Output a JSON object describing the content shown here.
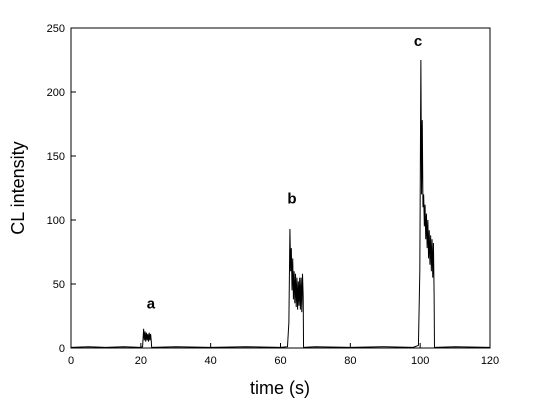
{
  "chart_data": {
    "type": "line",
    "x_label": "time (s)",
    "y_label": "CL intensity",
    "xlim": [
      0,
      120
    ],
    "xticks": [
      0,
      20,
      40,
      60,
      80,
      100,
      120
    ],
    "ylim": [
      0,
      250
    ],
    "yticks": [
      0,
      50,
      100,
      150,
      200,
      250
    ],
    "annotations": [
      {
        "text": "a",
        "x": 22.9,
        "y": 31
      },
      {
        "text": "b",
        "x": 63.3,
        "y": 113
      },
      {
        "text": "c",
        "x": 99.4,
        "y": 236
      }
    ],
    "series": [
      {
        "color": "#000000",
        "x": [
          0,
          5,
          10,
          15,
          20,
          20.5,
          20.8,
          21,
          21.2,
          21.4,
          21.6,
          21.8,
          22,
          22.2,
          22.4,
          22.6,
          22.8,
          23,
          23.1,
          30,
          40,
          50,
          60,
          62,
          62.4,
          62.7,
          62.9,
          63.1,
          63.3,
          63.5,
          63.7,
          63.9,
          64.1,
          64.3,
          64.5,
          64.7,
          64.9,
          65.1,
          65.3,
          65.5,
          65.7,
          65.9,
          66.1,
          66.3,
          66.5,
          66.6,
          70,
          80,
          90,
          98,
          99.5,
          99.9,
          100.2,
          100.4,
          100.6,
          100.8,
          101,
          101.2,
          101.4,
          101.6,
          101.8,
          102,
          102.2,
          102.4,
          102.6,
          102.8,
          103,
          103.2,
          103.4,
          103.6,
          103.8,
          104,
          104.1,
          110,
          120
        ],
        "values": [
          0.5,
          1,
          0.5,
          1,
          0.5,
          1,
          15,
          6,
          13,
          5,
          12,
          6,
          11,
          5,
          12,
          6,
          11,
          5,
          0.5,
          1,
          0.5,
          1,
          0.5,
          1,
          20,
          93,
          60,
          78,
          45,
          70,
          38,
          60,
          35,
          58,
          32,
          55,
          30,
          52,
          33,
          55,
          30,
          55,
          28,
          58,
          40,
          0.5,
          1,
          0.5,
          1,
          0.5,
          2,
          60,
          225,
          120,
          178,
          110,
          120,
          95,
          112,
          85,
          105,
          78,
          100,
          70,
          92,
          65,
          88,
          60,
          85,
          55,
          82,
          40,
          0.5,
          1,
          0.5
        ]
      }
    ]
  }
}
